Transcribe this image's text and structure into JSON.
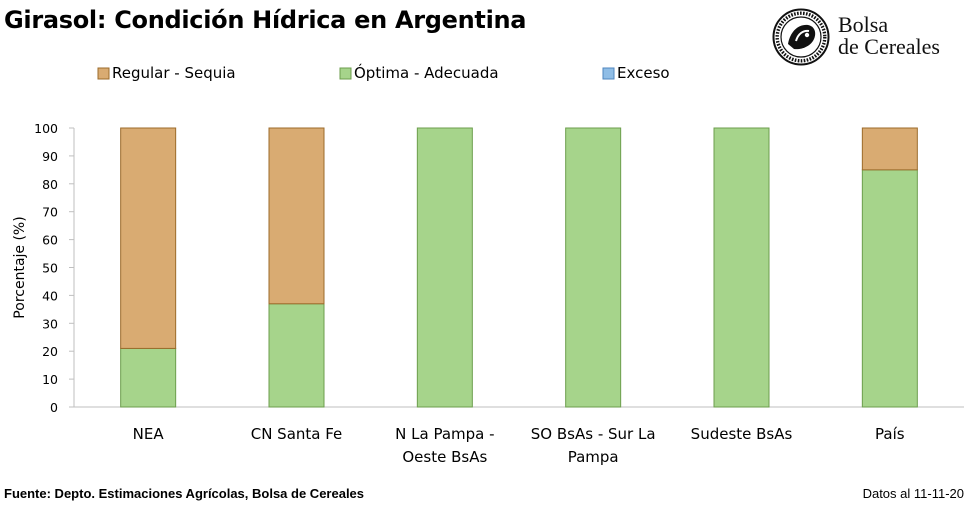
{
  "header": {
    "title": "Girasol: Condición Hídrica en Argentina",
    "logo_line1": "Bolsa",
    "logo_line2": "de Cereales",
    "logo_ring_text": "Bolsa de Cereales Buenos Aires 1854"
  },
  "footer": {
    "source": "Fuente: Depto. Estimaciones Agrícolas, Bolsa de Cereales",
    "date": "Datos al 11-11-20"
  },
  "colors": {
    "regular": "#d9ab72",
    "regular_border": "#9c6b2b",
    "optima": "#a6d48b",
    "optima_border": "#6c9e4d",
    "exceso": "#8fbde6",
    "exceso_border": "#4f86bf",
    "axis": "#bfbfbf"
  },
  "chart_data": {
    "type": "bar",
    "stacked": true,
    "categories": [
      [
        "NEA"
      ],
      [
        "CN Santa Fe"
      ],
      [
        "N La Pampa -",
        "Oeste BsAs"
      ],
      [
        "SO BsAs - Sur La",
        "Pampa"
      ],
      [
        "Sudeste BsAs"
      ],
      [
        "País"
      ]
    ],
    "series": [
      {
        "name": "Regular - Sequia",
        "values": [
          79,
          63,
          0,
          0,
          0,
          15
        ]
      },
      {
        "name": "Óptima - Adecuada",
        "values": [
          21,
          37,
          100,
          100,
          100,
          85
        ]
      },
      {
        "name": "Exceso",
        "values": [
          0,
          0,
          0,
          0,
          0,
          0
        ]
      }
    ],
    "stack_order": [
      "Óptima - Adecuada",
      "Regular - Sequia",
      "Exceso"
    ],
    "ylabel": "Porcentaje (%)",
    "xlabel": "",
    "ylim": [
      0,
      100
    ],
    "yticks": [
      0,
      10,
      20,
      30,
      40,
      50,
      60,
      70,
      80,
      90,
      100
    ],
    "grid": false,
    "legend_position": "top"
  }
}
